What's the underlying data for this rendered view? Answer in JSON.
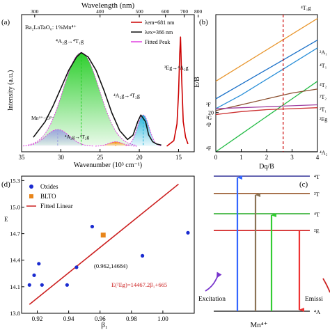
{
  "panel_a": {
    "label": "(a)",
    "top_axis_title": "Wavelength (nm)",
    "bottom_axis_title": "Wavenumber (10³ cm⁻¹)",
    "y_axis_title": "Intensity (a.u.)",
    "sample": "Ba₂LaTaO₆: 1%Mn⁴⁺",
    "legend": [
      "λem=681 nm",
      "λex=366 nm",
      "Fitted Peak"
    ],
    "annot_T1g": "⁴A₂g→⁴T₁g",
    "annot_T2g": "⁴A₂g→⁴T₂g",
    "annot_2T2g": "⁴A₂g→²T₂g",
    "annot_charge": "Mn⁴⁺−O²⁻",
    "annot_Eg": "²Eg→⁴A₂g",
    "colors": {
      "excitation": "#111111",
      "emission": "#cc0000",
      "fitted": "#e040e0",
      "peak_T1g": "#22cc22",
      "peak_charge": "#9aa0e0",
      "peak_2T2g": "#ff8c00",
      "peak_T2g": "#1ab0d8"
    }
  },
  "panel_b": {
    "label": "(b)",
    "y_axis_title": "E/B",
    "x_axis_title": "Dq/B",
    "left_labels": [
      "⁴F",
      "⁴P",
      "²G",
      "²F"
    ],
    "right_labels": [
      "⁴T₁g",
      "²A₁",
      "⁴T₁",
      "⁴T₂",
      "²T₂",
      "²T₁",
      "²Eg",
      "⁴A₂"
    ],
    "colors": {
      "T1g_top": "#e8962e",
      "A1": "#1a70c8",
      "T1": "#2a8fd8",
      "T2": "#22bb44",
      "T2b": "#8b5030",
      "T1b": "#a040a0",
      "Eg": "#cc3030",
      "dashed": "#cc0000"
    }
  },
  "panel_c": {
    "label": "(c)",
    "left_text": "Excitation",
    "right_text": "Emissi",
    "bottom_text": "Mn⁴⁺",
    "level_labels": [
      "⁴T",
      "²T",
      "⁴T",
      "²E",
      "⁴A"
    ],
    "colors": {
      "T1": "#333399",
      "T2b": "#8b4513",
      "T2": "#22aa22",
      "Eg": "#cc0000",
      "A2": "#333333",
      "arrow_up1": "#3366ff",
      "arrow_up2": "#8b7355",
      "arrow_up3": "#33cc33",
      "arrow_down": "#ee3333",
      "curl_left": "#7733cc",
      "curl_right": "#cc2222"
    }
  },
  "panel_d": {
    "label": "(d)",
    "x_axis_title": "β₁",
    "y_axis_title": "E",
    "legend": [
      "Oxides",
      "BLTO",
      "Fitted Linear"
    ],
    "point_label": "(0.962,14684)",
    "equation": "E(²Eg)=14467.2β₁+665",
    "colors": {
      "oxides": "#1a2bd0",
      "blto": "#e8851a",
      "fit": "#cc2020"
    }
  },
  "chart_data": [
    {
      "panel": "a",
      "type": "line",
      "x_label": "Wavenumber (10³ cm⁻¹)",
      "y_label": "Intensity (a.u.)",
      "xlim": [
        35,
        13
      ],
      "x_ticks": [
        35,
        30,
        25,
        20,
        15
      ],
      "top_x_label": "Wavelength (nm)",
      "top_x_ticks": [
        300,
        400,
        500,
        600,
        700,
        800
      ],
      "series": [
        {
          "name": "λex=366 nm",
          "x": [
            33.5,
            32,
            31,
            30,
            29,
            28,
            27.4,
            26.5,
            25.5,
            24.5,
            23.5,
            22.5,
            21.5,
            20.8,
            20.2,
            19.8,
            19.2,
            18.8,
            18.3,
            17.8,
            17.2
          ],
          "y": [
            0.08,
            0.22,
            0.36,
            0.52,
            0.68,
            0.8,
            0.84,
            0.8,
            0.68,
            0.5,
            0.3,
            0.14,
            0.06,
            0.1,
            0.22,
            0.28,
            0.22,
            0.1,
            0.04,
            0.02,
            0.01
          ]
        },
        {
          "name": "λem=681 nm",
          "x": [
            16.5,
            15.6,
            15.2,
            15.0,
            14.85,
            14.75,
            14.6,
            14.4,
            14.1,
            13.8
          ],
          "y": [
            0.0,
            0.05,
            0.2,
            0.48,
            0.82,
            0.98,
            0.6,
            0.22,
            0.08,
            0.02
          ]
        },
        {
          "name": "Fitted Peak ⁴A₂g→⁴T₁g",
          "center": 27.4,
          "height": 0.84
        },
        {
          "name": "Fitted Peak Mn⁴⁺−O²⁻",
          "center": 30.4,
          "height": 0.15
        },
        {
          "name": "Fitted Peak ⁴A₂g→²T₂g",
          "center": 23.0,
          "height": 0.04
        },
        {
          "name": "Fitted Peak ⁴A₂g→⁴T₂g",
          "center": 19.5,
          "height": 0.28
        }
      ]
    },
    {
      "panel": "b",
      "type": "line",
      "x_label": "Dq/B",
      "y_label": "E/B",
      "xlim": [
        0,
        4
      ],
      "ylim": [
        0,
        70
      ],
      "x_ticks": [
        0,
        1,
        2,
        3,
        4
      ],
      "y_ticks": [
        20
      ],
      "vertical_dashed_x": 2.65,
      "series": [
        {
          "name": "⁴T₁g (top)",
          "x": [
            0,
            4
          ],
          "y": [
            36,
            68
          ]
        },
        {
          "name": "²A₁",
          "x": [
            0,
            4
          ],
          "y": [
            27,
            57
          ]
        },
        {
          "name": "⁴T₁",
          "x": [
            0,
            1,
            2,
            3,
            4
          ],
          "y": [
            22,
            29,
            37,
            45,
            53
          ]
        },
        {
          "name": "⁴T₂",
          "x": [
            0,
            1,
            2,
            3,
            4
          ],
          "y": [
            0,
            9,
            18,
            27,
            36
          ]
        },
        {
          "name": "²T₂",
          "x": [
            0,
            1,
            2,
            3,
            4
          ],
          "y": [
            21,
            24,
            27,
            30,
            32
          ]
        },
        {
          "name": "²T₁",
          "x": [
            0,
            1,
            2,
            3,
            4
          ],
          "y": [
            22,
            22.5,
            23,
            23.5,
            24
          ]
        },
        {
          "name": "²Eg",
          "x": [
            0,
            1,
            2,
            3,
            4
          ],
          "y": [
            19,
            20.5,
            21.5,
            22,
            22.5
          ]
        },
        {
          "name": "⁴A₂",
          "x": [
            0,
            4
          ],
          "y": [
            0,
            0
          ]
        }
      ]
    },
    {
      "panel": "d",
      "type": "scatter",
      "x_label": "β₁",
      "xlim": [
        0.91,
        1.02
      ],
      "ylim": [
        13.8,
        15.35
      ],
      "x_ticks": [
        0.92,
        0.94,
        0.96,
        0.98,
        1.0
      ],
      "y_ticks": [
        13.8,
        14.1,
        14.4,
        14.7,
        15.0,
        15.3
      ],
      "series": [
        {
          "name": "Oxides",
          "x": [
            0.915,
            0.918,
            0.921,
            0.923,
            0.939,
            0.945,
            0.955,
            0.987,
            1.016
          ],
          "y": [
            14.12,
            14.23,
            14.36,
            14.12,
            14.12,
            14.32,
            14.78,
            14.45,
            14.71
          ]
        },
        {
          "name": "BLTO",
          "x": [
            0.962
          ],
          "y": [
            14.684
          ]
        },
        {
          "name": "Fitted Linear",
          "x": [
            0.915,
            1.01
          ],
          "y": [
            13.9,
            15.26
          ]
        }
      ]
    }
  ]
}
